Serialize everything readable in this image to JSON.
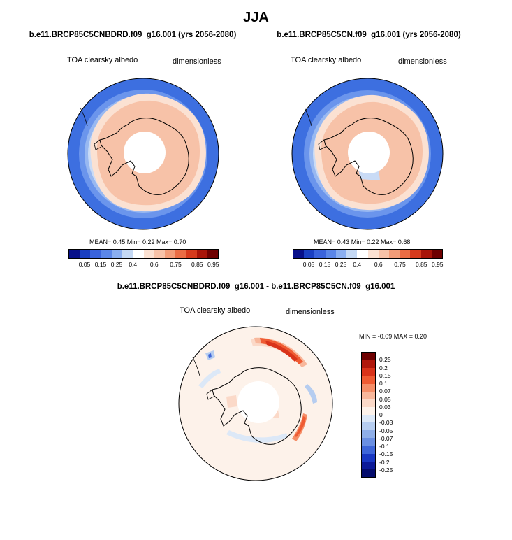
{
  "page": {
    "season": "JJA",
    "panels": [
      {
        "case": "b.e11.BRCP85C5CNBDRD.f09_g16.001 (yrs 2056-2080)",
        "variable": "TOA clearsky albedo",
        "units": "dimensionless",
        "stats": "MEAN=  0.45  Min=   0.22  Max=   0.70"
      },
      {
        "case": "b.e11.BRCP85C5CN.f09_g16.001 (yrs 2056-2080)",
        "variable": "TOA clearsky albedo",
        "units": "dimensionless",
        "stats": "MEAN=  0.43  Min=   0.22  Max=   0.68"
      }
    ],
    "diff": {
      "title": "b.e11.BRCP85C5CNBDRD.f09_g16.001 - b.e11.BRCP85C5CN.f09_g16.001",
      "variable": "TOA clearsky albedo",
      "units": "dimensionless",
      "minmax": "MIN =  -0.09 MAX =   0.20"
    }
  },
  "colorbars": {
    "field_colors": [
      "#08108a",
      "#1a3fc2",
      "#3a63dc",
      "#5b86e8",
      "#8aaef0",
      "#c4d8f4",
      "#ffffff",
      "#fbe1d2",
      "#f7c2a8",
      "#f29c78",
      "#ea6c44",
      "#d63a1c",
      "#a81408",
      "#6e0000"
    ],
    "field_ticks": [
      "0.05",
      "0.15",
      "0.25",
      "0.4",
      "0.6",
      "0.75",
      "0.85",
      "0.95"
    ],
    "diff_colors": [
      "#6e0000",
      "#b0180c",
      "#d9331a",
      "#ef5b33",
      "#f58e68",
      "#f8b79b",
      "#fbd9c8",
      "#fdf2ea",
      "#dce8f7",
      "#b6cdf0",
      "#8eaee8",
      "#6a8fe2",
      "#3e66d8",
      "#1938c2",
      "#0c1a98",
      "#040c6c"
    ],
    "diff_ticks": [
      "0.25",
      "0.2",
      "0.15",
      "0.1",
      "0.07",
      "0.05",
      "0.03",
      "0",
      "-0.03",
      "-0.05",
      "-0.07",
      "-0.1",
      "-0.15",
      "-0.2",
      "-0.25"
    ]
  }
}
